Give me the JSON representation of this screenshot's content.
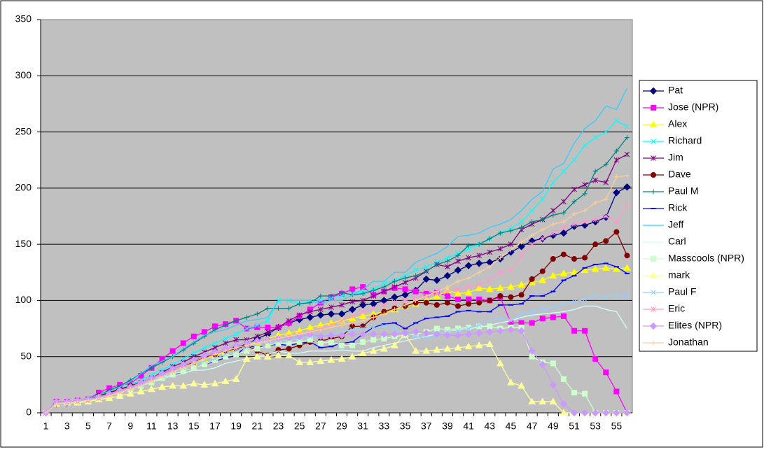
{
  "chart_data": {
    "type": "line",
    "categories": [
      1,
      null,
      3,
      null,
      5,
      null,
      7,
      null,
      9,
      null,
      11,
      null,
      13,
      null,
      15,
      null,
      17,
      null,
      19,
      null,
      21,
      null,
      23,
      null,
      25,
      null,
      27,
      null,
      29,
      null,
      31,
      null,
      33,
      null,
      35,
      null,
      37,
      null,
      39,
      null,
      41,
      null,
      43,
      null,
      45,
      null,
      47,
      null,
      49,
      null,
      51,
      null,
      53,
      null,
      55,
      null
    ],
    "ylim": [
      0,
      350
    ],
    "yticks": [
      0,
      50,
      100,
      150,
      200,
      250,
      300,
      350
    ],
    "grid": true,
    "legend": "right",
    "series": [
      {
        "name": "Pat",
        "color": "#000080",
        "marker": "diamond",
        "values": [
          0,
          8,
          9,
          10,
          12,
          15,
          18,
          21,
          24,
          27,
          31,
          35,
          39,
          43,
          47,
          50,
          53,
          55,
          58,
          61,
          66,
          70,
          76,
          80,
          83,
          85,
          87,
          88,
          88,
          92,
          96,
          97,
          100,
          103,
          105,
          109,
          119,
          118,
          122,
          127,
          131,
          133,
          134,
          137,
          143,
          148,
          153,
          155,
          158,
          160,
          166,
          167,
          170,
          174,
          196,
          201
        ]
      },
      {
        "name": "Jose (NPR)",
        "color": "#ff00ff",
        "marker": "square",
        "values": [
          0,
          10,
          10,
          11,
          12,
          18,
          22,
          25,
          26,
          33,
          40,
          48,
          55,
          62,
          68,
          72,
          77,
          79,
          82,
          75,
          76,
          76,
          76,
          80,
          86,
          92,
          98,
          103,
          106,
          110,
          112,
          105,
          108,
          111,
          110,
          108,
          106,
          107,
          104,
          101,
          101,
          101,
          100,
          103,
          80,
          80,
          80,
          84,
          85,
          86,
          73,
          73,
          48,
          36,
          19,
          0
        ]
      },
      {
        "name": "Alex",
        "color": "#ffff00",
        "marker": "triangle",
        "values": [
          0,
          8,
          9,
          10,
          12,
          14,
          17,
          20,
          23,
          27,
          31,
          35,
          38,
          42,
          45,
          48,
          51,
          54,
          57,
          60,
          63,
          66,
          69,
          71,
          73,
          76,
          78,
          80,
          82,
          84,
          86,
          88,
          90,
          92,
          95,
          97,
          100,
          104,
          109,
          106,
          107,
          111,
          110,
          111,
          112,
          114,
          116,
          118,
          122,
          124,
          125,
          127,
          128,
          129,
          128,
          129
        ]
      },
      {
        "name": "Richard",
        "color": "#00ffff",
        "marker": "x",
        "values": [
          0,
          9,
          9,
          10,
          12,
          15,
          18,
          21,
          25,
          29,
          34,
          38,
          43,
          48,
          53,
          58,
          62,
          66,
          70,
          75,
          78,
          82,
          100,
          100,
          97,
          99,
          100,
          102,
          104,
          106,
          107,
          110,
          115,
          118,
          122,
          127,
          130,
          134,
          138,
          142,
          146,
          150,
          155,
          160,
          164,
          170,
          180,
          190,
          205,
          215,
          225,
          238,
          245,
          250,
          260,
          255
        ]
      },
      {
        "name": "Jim",
        "color": "#800080",
        "marker": "star",
        "values": [
          0,
          9,
          9,
          10,
          12,
          14,
          17,
          20,
          23,
          27,
          31,
          36,
          41,
          45,
          50,
          54,
          58,
          62,
          65,
          65,
          68,
          72,
          76,
          82,
          87,
          90,
          92,
          94,
          96,
          99,
          100,
          104,
          108,
          112,
          116,
          120,
          126,
          132,
          130,
          135,
          138,
          140,
          143,
          146,
          150,
          163,
          168,
          172,
          180,
          188,
          199,
          203,
          207,
          205,
          225,
          230
        ]
      },
      {
        "name": "Dave",
        "color": "#800000",
        "marker": "circle",
        "values": [
          0,
          8,
          9,
          10,
          12,
          15,
          18,
          21,
          24,
          27,
          31,
          35,
          38,
          42,
          45,
          50,
          52,
          55,
          57,
          60,
          55,
          51,
          56,
          57,
          60,
          63,
          64,
          66,
          68,
          77,
          77,
          85,
          90,
          93,
          95,
          98,
          98,
          96,
          98,
          95,
          97,
          98,
          100,
          104,
          103,
          105,
          119,
          126,
          137,
          141,
          137,
          138,
          150,
          153,
          161,
          140
        ]
      },
      {
        "name": "Paul M",
        "color": "#008080",
        "marker": "plus",
        "values": [
          0,
          9,
          9,
          10,
          12,
          16,
          20,
          24,
          29,
          35,
          40,
          45,
          50,
          56,
          62,
          68,
          74,
          78,
          82,
          85,
          88,
          93,
          93,
          93,
          97,
          98,
          104,
          104,
          107,
          105,
          106,
          109,
          112,
          117,
          120,
          122,
          126,
          132,
          135,
          140,
          149,
          150,
          155,
          160,
          162,
          165,
          170,
          172,
          176,
          178,
          188,
          195,
          215,
          221,
          233,
          245
        ]
      },
      {
        "name": "Rick",
        "color": "#0000ff",
        "marker": "dash",
        "values": [
          0,
          9,
          9,
          10,
          11,
          13,
          15,
          18,
          21,
          24,
          27,
          30,
          33,
          37,
          40,
          43,
          46,
          49,
          51,
          60,
          58,
          60,
          61,
          60,
          62,
          63,
          58,
          59,
          62,
          63,
          70,
          76,
          79,
          80,
          75,
          80,
          84,
          85,
          86,
          90,
          91,
          90,
          90,
          96,
          96,
          97,
          104,
          104,
          108,
          118,
          122,
          129,
          132,
          133,
          130,
          124
        ]
      },
      {
        "name": "Jeff",
        "color": "#33ccff",
        "marker": "none",
        "values": [
          0,
          9,
          9,
          10,
          12,
          16,
          19,
          23,
          28,
          35,
          42,
          46,
          50,
          57,
          63,
          69,
          72,
          74,
          78,
          82,
          83,
          85,
          100,
          100,
          100,
          100,
          97,
          100,
          100,
          105,
          110,
          117,
          117,
          125,
          125,
          134,
          138,
          142,
          148,
          157,
          158,
          160,
          165,
          168,
          172,
          180,
          190,
          197,
          217,
          222,
          240,
          253,
          260,
          273,
          270,
          289
        ]
      },
      {
        "name": "Carl",
        "color": "#ccffff",
        "marker": "none",
        "values": [
          0,
          8,
          9,
          9,
          11,
          13,
          15,
          18,
          21,
          24,
          27,
          30,
          33,
          35,
          38,
          38,
          40,
          44,
          46,
          48,
          50,
          52,
          55,
          53,
          53,
          55,
          55,
          55,
          56,
          55,
          55,
          58,
          60,
          62,
          64,
          66,
          68,
          70,
          72,
          74,
          75,
          76,
          78,
          80,
          82,
          85,
          87,
          88,
          89,
          90,
          92,
          95,
          95,
          92,
          90,
          75
        ]
      },
      {
        "name": "Masscools (NPR)",
        "color": "#ccffcc",
        "marker": "square",
        "values": [
          0,
          8,
          9,
          10,
          11,
          13,
          15,
          18,
          21,
          24,
          27,
          31,
          34,
          37,
          40,
          43,
          47,
          50,
          52,
          55,
          57,
          60,
          62,
          62,
          63,
          65,
          62,
          63,
          60,
          60,
          63,
          65,
          66,
          68,
          69,
          70,
          72,
          75,
          74,
          75,
          76,
          77,
          77,
          75,
          76,
          76,
          50,
          45,
          44,
          30,
          18,
          17,
          0,
          0,
          0,
          0
        ]
      },
      {
        "name": "mark",
        "color": "#ffff99",
        "marker": "triangle",
        "values": [
          0,
          8,
          9,
          9,
          10,
          12,
          13,
          15,
          17,
          19,
          21,
          23,
          24,
          24,
          26,
          25,
          26,
          28,
          30,
          48,
          50,
          50,
          51,
          51,
          45,
          45,
          46,
          47,
          48,
          50,
          53,
          55,
          57,
          60,
          70,
          55,
          55,
          56,
          57,
          58,
          59,
          60,
          61,
          44,
          27,
          24,
          10,
          10,
          10,
          0,
          0,
          0,
          0,
          0,
          0,
          0
        ]
      },
      {
        "name": "Paul F",
        "color": "#99ccff",
        "marker": "x",
        "values": [
          0,
          9,
          9,
          10,
          11,
          13,
          16,
          19,
          22,
          25,
          29,
          33,
          37,
          40,
          44,
          46,
          48,
          52,
          55,
          58,
          62,
          63,
          64,
          65,
          66,
          68,
          68,
          70,
          72,
          74,
          75,
          76,
          77,
          75,
          70,
          68,
          66,
          70,
          72,
          73,
          75,
          78,
          82,
          84,
          82,
          88,
          90,
          93,
          94,
          97,
          99,
          101,
          104,
          103,
          105,
          104
        ]
      },
      {
        "name": "Eric",
        "color": "#ff99cc",
        "marker": "star",
        "values": [
          0,
          9,
          9,
          10,
          11,
          13,
          16,
          19,
          22,
          26,
          30,
          34,
          38,
          42,
          46,
          50,
          53,
          56,
          58,
          60,
          62,
          64,
          66,
          68,
          70,
          72,
          75,
          78,
          82,
          86,
          90,
          93,
          96,
          98,
          100,
          102,
          104,
          106,
          108,
          110,
          112,
          114,
          118,
          125,
          127,
          140,
          150,
          155,
          160,
          165,
          168,
          170,
          172,
          175,
          170,
          185
        ]
      },
      {
        "name": "Elites (NPR)",
        "color": "#cc99ff",
        "marker": "diamond",
        "values": [
          0,
          10,
          10,
          11,
          12,
          14,
          17,
          20,
          23,
          27,
          31,
          35,
          39,
          43,
          47,
          51,
          54,
          57,
          60,
          62,
          64,
          65,
          66,
          67,
          68,
          70,
          68,
          69,
          69,
          70,
          70,
          70,
          70,
          70,
          71,
          72,
          71,
          70,
          69,
          69,
          70,
          71,
          72,
          73,
          74,
          73,
          55,
          43,
          25,
          8,
          0,
          0,
          0,
          0,
          0,
          0
        ]
      },
      {
        "name": "Jonathan",
        "color": "#ffcc99",
        "marker": "plus",
        "values": [
          0,
          8,
          9,
          10,
          11,
          13,
          15,
          18,
          21,
          24,
          28,
          32,
          36,
          40,
          44,
          48,
          52,
          55,
          58,
          60,
          62,
          64,
          66,
          68,
          70,
          72,
          74,
          76,
          78,
          80,
          82,
          85,
          88,
          92,
          96,
          100,
          104,
          108,
          112,
          117,
          120,
          125,
          130,
          138,
          145,
          152,
          158,
          163,
          168,
          170,
          177,
          180,
          187,
          190,
          210,
          211
        ]
      }
    ]
  }
}
